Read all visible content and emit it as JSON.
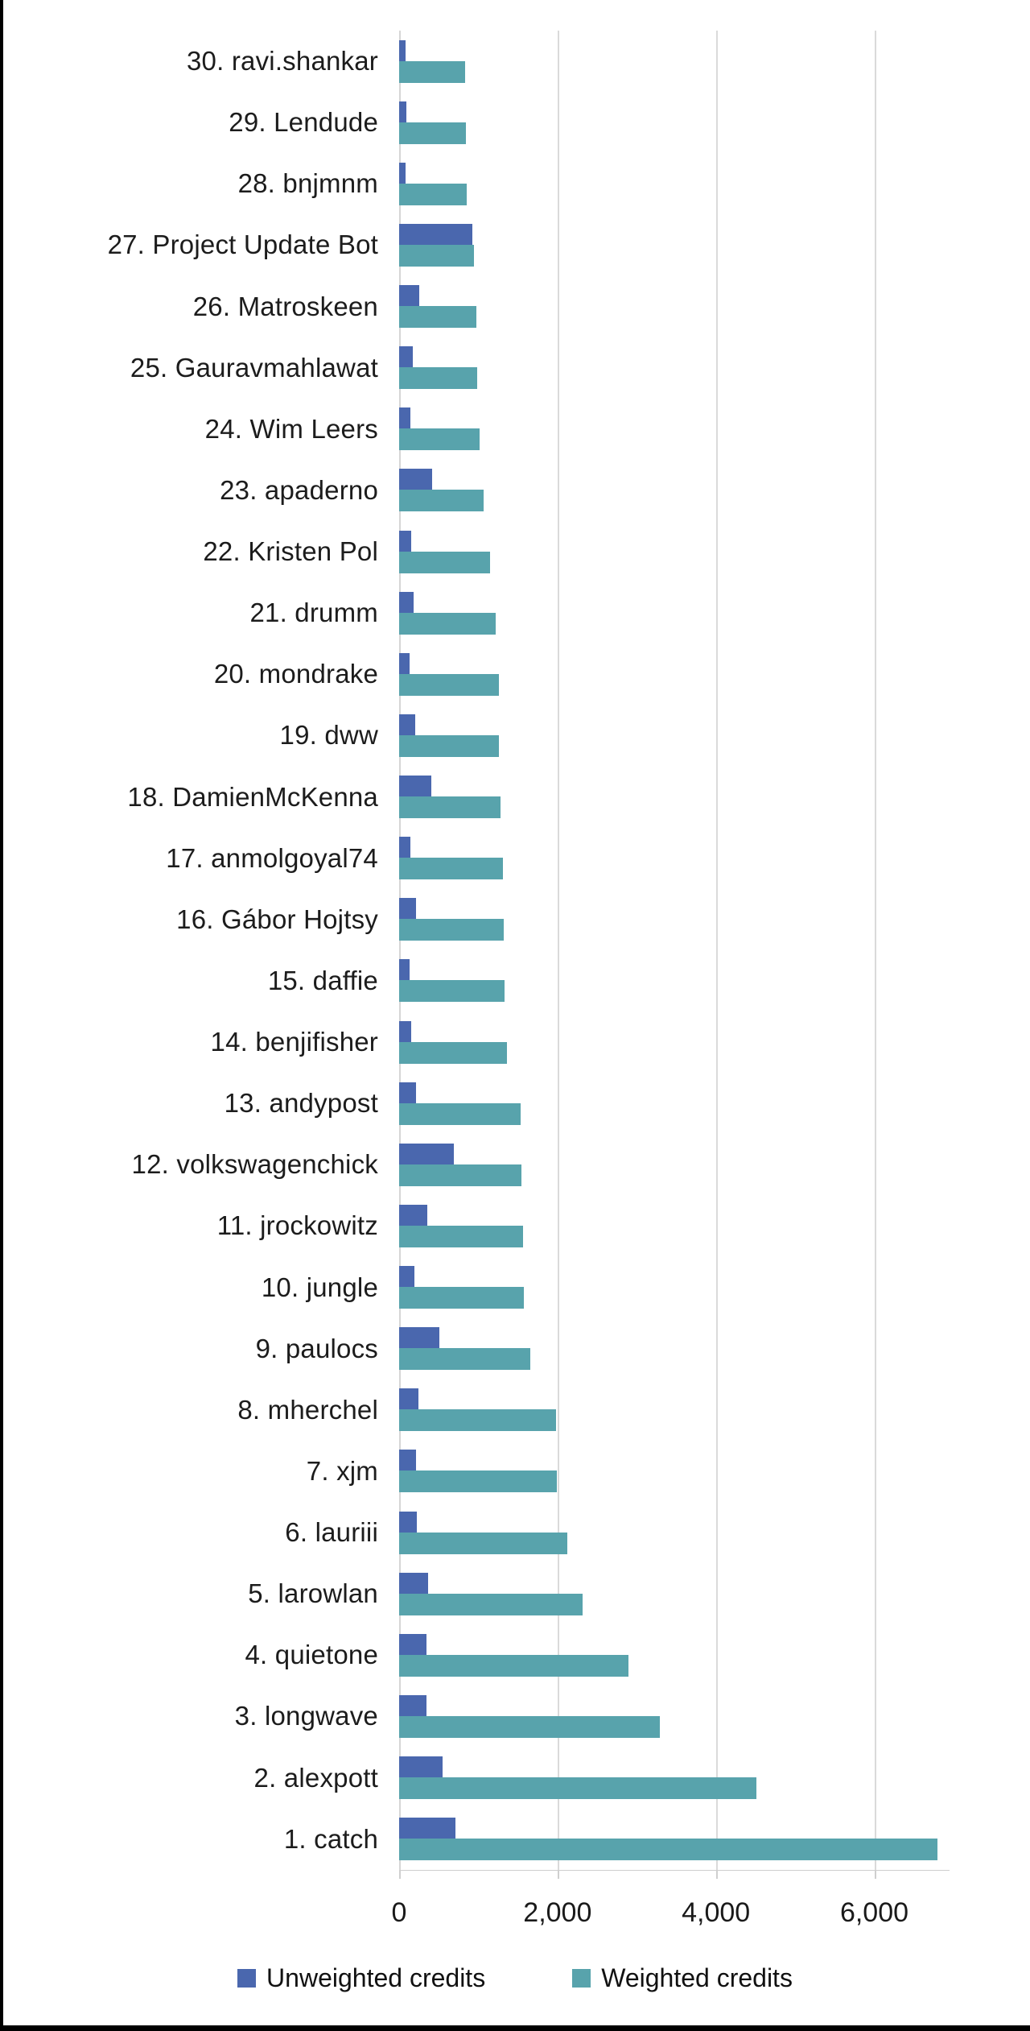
{
  "frame": {
    "left_edge_color": "#000000",
    "bottom_edge_color": "#000000",
    "background_color": "#ffffff"
  },
  "chart_data": {
    "type": "bar",
    "orientation": "horizontal",
    "title": "",
    "xlabel": "",
    "ylabel": "",
    "grid": true,
    "grid_color": "#dadada",
    "xlim": [
      0,
      6950
    ],
    "x_ticks": [
      {
        "label": "0",
        "value": 0
      },
      {
        "label": "2,000",
        "value": 2000
      },
      {
        "label": "4,000",
        "value": 4000
      },
      {
        "label": "6,000",
        "value": 6000
      }
    ],
    "categories": [
      "30. ravi.shankar",
      "29. Lendude",
      "28. bnjmnm",
      "27. Project Update Bot",
      "26. Matroskeen",
      "25. Gauravmahlawat",
      "24. Wim Leers",
      "23. apaderno",
      "22. Kristen Pol",
      "21. drumm",
      "20. mondrake",
      "19. dww",
      "18. DamienMcKenna",
      "17. anmolgoyal74",
      "16. Gábor Hojtsy",
      "15. daffie",
      "14. benjifisher",
      "13. andypost",
      "12. volkswagenchick",
      "11. jrockowitz",
      "10. jungle",
      "9. paulocs",
      "8. mherchel",
      "7. xjm",
      "6. lauriii",
      "5. larowlan",
      "4. quietone",
      "3. longwave",
      "2. alexpott",
      "1. catch"
    ],
    "series": [
      {
        "name": "Unweighted credits",
        "color": "#4a67ae",
        "values": [
          80,
          95,
          80,
          925,
          250,
          175,
          140,
          420,
          155,
          185,
          135,
          200,
          405,
          145,
          210,
          130,
          155,
          210,
          695,
          355,
          190,
          505,
          240,
          215,
          220,
          370,
          350,
          350,
          550,
          715
        ]
      },
      {
        "name": "Weighted credits",
        "color": "#58a3ac",
        "values": [
          830,
          840,
          855,
          940,
          975,
          985,
          1015,
          1070,
          1150,
          1220,
          1255,
          1265,
          1285,
          1310,
          1325,
          1335,
          1360,
          1535,
          1545,
          1560,
          1570,
          1655,
          1985,
          1990,
          2125,
          2315,
          2900,
          3290,
          4510,
          6800
        ]
      }
    ],
    "legend": {
      "position": "bottom",
      "items": [
        "Unweighted credits",
        "Weighted credits"
      ]
    }
  }
}
